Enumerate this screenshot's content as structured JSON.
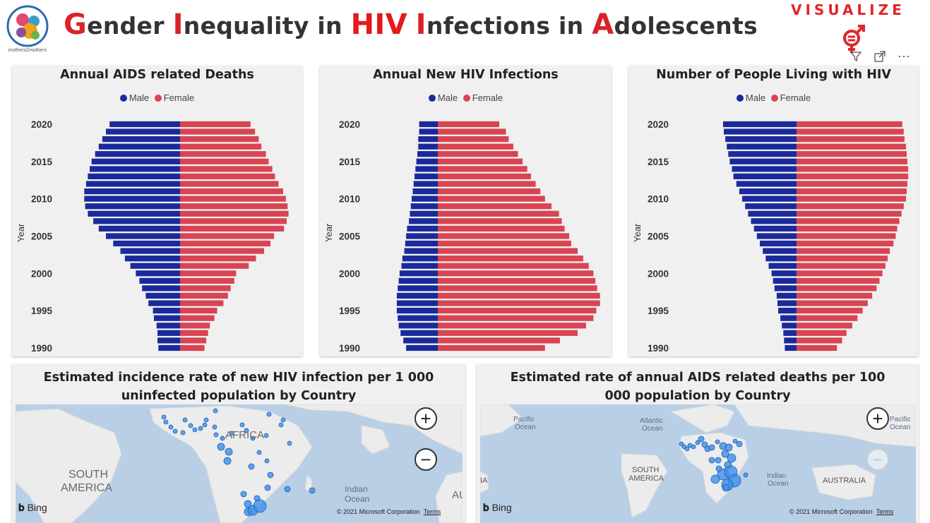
{
  "header": {
    "title_parts": [
      {
        "t": "G",
        "c": "cap"
      },
      {
        "t": "ender ",
        "c": ""
      },
      {
        "t": "I",
        "c": "cap"
      },
      {
        "t": "nequality in ",
        "c": ""
      },
      {
        "t": "HIV",
        "c": "big"
      },
      {
        "t": " ",
        "c": ""
      },
      {
        "t": "I",
        "c": "cap"
      },
      {
        "t": "nfections in ",
        "c": ""
      },
      {
        "t": "A",
        "c": "cap"
      },
      {
        "t": "dolescents",
        "c": ""
      }
    ],
    "logo_text": "mothers2mothers",
    "brand": "VISUALIZE",
    "toolbar": {
      "filter_icon": "filter-icon",
      "focus_icon": "focus-mode-icon",
      "more_label": "⋯"
    }
  },
  "colors": {
    "male": "#1a2a9c",
    "female": "#d94452",
    "accent": "#e41a1c",
    "panel": "#f0f0f0",
    "ocean": "#b8cfe6",
    "land": "#ececec",
    "bubble": "#3d8fe8"
  },
  "legend": {
    "male": "Male",
    "female": "Female"
  },
  "axis": {
    "ylabel": "Year",
    "ticks": [
      "2020",
      "2015",
      "2010",
      "2005",
      "2000",
      "1995",
      "1990"
    ]
  },
  "chart_data": [
    {
      "type": "bar",
      "title": "Annual AIDS related Deaths",
      "ylabel": "Year",
      "categories": [
        1990,
        1991,
        1992,
        1993,
        1994,
        1995,
        1996,
        1997,
        1998,
        1999,
        2000,
        2001,
        2002,
        2003,
        2004,
        2005,
        2006,
        2007,
        2008,
        2009,
        2010,
        2011,
        2012,
        2013,
        2014,
        2015,
        2016,
        2017,
        2018,
        2019,
        2020
      ],
      "series": [
        {
          "name": "Male",
          "values": [
            24,
            25,
            25,
            26,
            29,
            30,
            35,
            38,
            42,
            45,
            49,
            55,
            61,
            66,
            74,
            82,
            90,
            96,
            102,
            105,
            106,
            106,
            104,
            102,
            100,
            98,
            94,
            90,
            86,
            82,
            78
          ]
        },
        {
          "name": "Female",
          "values": [
            27,
            29,
            31,
            33,
            38,
            41,
            48,
            53,
            56,
            60,
            62,
            76,
            84,
            93,
            100,
            104,
            115,
            118,
            120,
            119,
            117,
            114,
            109,
            105,
            102,
            98,
            95,
            90,
            87,
            83,
            78
          ]
        }
      ]
    },
    {
      "type": "bar",
      "title": "Annual New HIV Infections",
      "ylabel": "Year",
      "categories": [
        1990,
        1991,
        1992,
        1993,
        1994,
        1995,
        1996,
        1997,
        1998,
        1999,
        2000,
        2001,
        2002,
        2003,
        2004,
        2005,
        2006,
        2007,
        2008,
        2009,
        2010,
        2011,
        2012,
        2013,
        2014,
        2015,
        2016,
        2017,
        2018,
        2019,
        2020
      ],
      "series": [
        {
          "name": "Male",
          "values": [
            34,
            37,
            40,
            42,
            43,
            44,
            44,
            44,
            43,
            42,
            41,
            39,
            38,
            36,
            35,
            34,
            33,
            31,
            30,
            29,
            28,
            27,
            26,
            25,
            24,
            23,
            22,
            21,
            21,
            20,
            20
          ]
        },
        {
          "name": "Female",
          "values": [
            115,
            131,
            150,
            159,
            167,
            170,
            174,
            174,
            171,
            169,
            167,
            162,
            156,
            150,
            143,
            141,
            136,
            133,
            130,
            122,
            115,
            110,
            105,
            100,
            96,
            91,
            86,
            81,
            76,
            73,
            66
          ]
        }
      ]
    },
    {
      "type": "bar",
      "title": "Number of People Living with HIV",
      "ylabel": "Year",
      "categories": [
        1990,
        1991,
        1992,
        1993,
        1994,
        1995,
        1996,
        1997,
        1998,
        1999,
        2000,
        2001,
        2002,
        2003,
        2004,
        2005,
        2006,
        2007,
        2008,
        2009,
        2010,
        2011,
        2012,
        2013,
        2014,
        2015,
        2016,
        2017,
        2018,
        2019,
        2020
      ],
      "series": [
        {
          "name": "Male",
          "values": [
            16,
            17,
            18,
            20,
            22,
            25,
            26,
            27,
            30,
            32,
            34,
            38,
            42,
            46,
            50,
            54,
            58,
            62,
            66,
            70,
            74,
            78,
            82,
            86,
            88,
            91,
            93,
            95,
            97,
            99,
            100
          ]
        },
        {
          "name": "Female",
          "values": [
            55,
            62,
            68,
            76,
            83,
            90,
            97,
            103,
            109,
            113,
            117,
            121,
            124,
            127,
            132,
            135,
            137,
            140,
            143,
            146,
            149,
            150,
            151,
            152,
            152,
            151,
            150,
            149,
            147,
            146,
            144
          ]
        }
      ]
    }
  ],
  "maps": [
    {
      "title": "Estimated incidence rate of new HIV infection per 1 000 uninfected population by Country",
      "labels": [
        "SOUTH",
        "AMERICA",
        "AFRICA",
        "Indian",
        "Ocean",
        "AU"
      ],
      "zoom_in": "+",
      "zoom_out": "−",
      "bing": "Bing",
      "copyright": "© 2021 Microsoft Corporation",
      "terms": "Terms",
      "bubble_sizes": [
        3,
        3,
        3,
        3,
        3,
        3,
        3,
        3,
        3,
        3,
        3,
        3,
        3,
        3,
        3,
        3,
        3,
        3,
        3,
        3,
        3,
        3,
        3,
        4,
        4,
        4,
        4,
        4,
        4,
        4,
        5,
        5,
        6,
        7,
        9,
        5,
        5,
        3,
        3,
        3
      ]
    },
    {
      "title": "Estimated rate of annual AIDS related deaths per 100 000 population by Country",
      "labels": [
        "Pacific",
        "Ocean",
        "Atlantic",
        "Ocean",
        "Pacific",
        "Ocean",
        "SOUTH",
        "AMERICA",
        "Indian",
        "Ocean",
        "AUSTRALIA",
        "IA"
      ],
      "zoom_in": "+",
      "zoom_out": "−",
      "bing": "Bing",
      "copyright": "© 2021 Microsoft Corporation",
      "terms": "Terms"
    }
  ]
}
